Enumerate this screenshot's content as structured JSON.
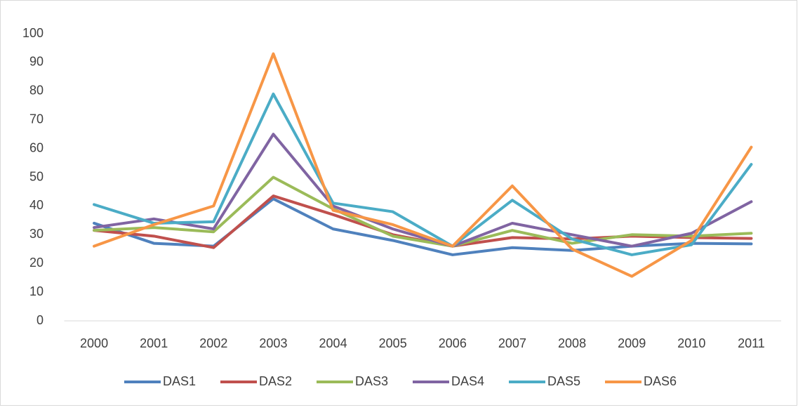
{
  "chart_data": {
    "type": "line",
    "categories": [
      "2000",
      "2001",
      "2002",
      "2003",
      "2004",
      "2005",
      "2006",
      "2007",
      "2008",
      "2009",
      "2010",
      "2011"
    ],
    "series": [
      {
        "name": "DAS1",
        "color": "#4f81bd",
        "values": [
          34,
          27,
          26,
          42.5,
          32,
          28,
          23,
          25.5,
          24.5,
          26,
          27,
          26.8
        ]
      },
      {
        "name": "DAS2",
        "color": "#c0504d",
        "values": [
          31.5,
          29.5,
          25.5,
          43.5,
          37,
          30,
          26,
          29,
          28.5,
          29.5,
          29,
          28.7
        ]
      },
      {
        "name": "DAS3",
        "color": "#9bbb59",
        "values": [
          31.5,
          32.5,
          31,
          50,
          39,
          29.5,
          26,
          31.5,
          27,
          30,
          29.5,
          30.5
        ]
      },
      {
        "name": "DAS4",
        "color": "#8064a2",
        "values": [
          32.5,
          35.5,
          32,
          65,
          40,
          32,
          26,
          34,
          30,
          26,
          30.5,
          41.5
        ]
      },
      {
        "name": "DAS5",
        "color": "#4bacc6",
        "values": [
          40.5,
          34,
          34.5,
          79,
          41,
          38,
          26,
          42,
          28.5,
          23,
          26.5,
          54.5
        ]
      },
      {
        "name": "DAS6",
        "color": "#f79646",
        "values": [
          26,
          33.5,
          40,
          93,
          38.5,
          33.5,
          26,
          47,
          25,
          15.5,
          28,
          60.5
        ]
      }
    ],
    "ylim": [
      0,
      100
    ],
    "yticks": [
      0,
      10,
      20,
      30,
      40,
      50,
      60,
      70,
      80,
      90,
      100
    ],
    "grid": false,
    "legend": "bottom"
  }
}
